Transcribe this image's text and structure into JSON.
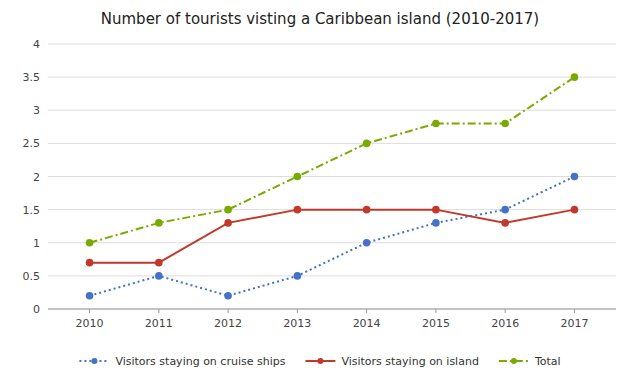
{
  "chart_data": {
    "type": "line",
    "title": "Number of tourists visting a Caribbean island (2010-2017)",
    "x": [
      2010,
      2011,
      2012,
      2013,
      2014,
      2015,
      2016,
      2017
    ],
    "series": [
      {
        "name": "Visitors staying on cruise ships",
        "color": "#4472C4",
        "line_style": "dotted",
        "marker": "circle",
        "values": [
          0.2,
          0.5,
          0.2,
          0.5,
          1.0,
          1.3,
          1.5,
          2.0
        ]
      },
      {
        "name": "Visitors staying on island",
        "color": "#C0392B",
        "line_style": "solid",
        "marker": "circle",
        "values": [
          0.7,
          0.7,
          1.3,
          1.5,
          1.5,
          1.5,
          1.3,
          1.5
        ]
      },
      {
        "name": "Total",
        "color": "#7AAA00",
        "line_style": "dashdot",
        "marker": "circle",
        "values": [
          1.0,
          1.3,
          1.5,
          2.0,
          2.5,
          2.8,
          2.8,
          3.5
        ]
      }
    ],
    "xlim": [
      2009.4,
      2017.6
    ],
    "xticks": [
      2010,
      2011,
      2012,
      2013,
      2014,
      2015,
      2016,
      2017
    ],
    "ylim": [
      0,
      4
    ],
    "yticks": [
      0,
      0.5,
      1.0,
      1.5,
      2.0,
      2.5,
      3.0,
      3.5,
      4.0
    ],
    "grid": true,
    "legend": "bottom"
  }
}
